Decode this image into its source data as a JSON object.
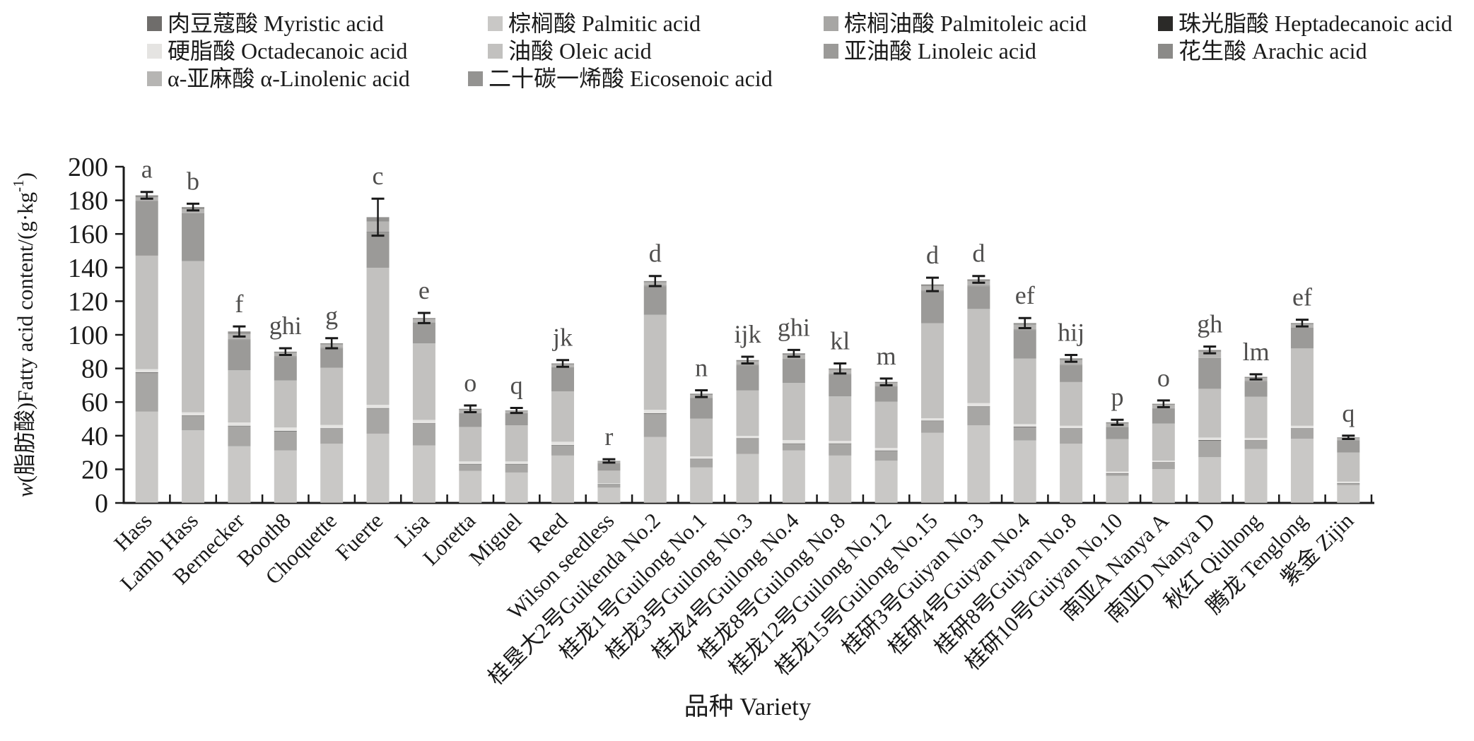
{
  "chart_data": {
    "type": "stacked-bar",
    "title": "",
    "xlabel": "品种 Variety",
    "ylabel_text": "w(脂肪酸)Fatty acid content/(g·kg⁻¹)",
    "ylabel": {
      "italic": "w",
      "main": "(脂肪酸)Fatty acid content/(g·kg",
      "sup": "-1",
      "end": ")"
    },
    "ylim": [
      0,
      200
    ],
    "ytick_step": 20,
    "ytick_labels": [
      "0",
      "20",
      "40",
      "60",
      "80",
      "100",
      "120",
      "140",
      "160",
      "180",
      "200"
    ],
    "grid": false,
    "legend_position": "top",
    "error_bar_color": "#1a1a1a",
    "sig_letter_color": "#4f4e4d",
    "axis_color": "#1a1a1a",
    "categories": [
      "Hass",
      "Lamb Hass",
      "Bernecker",
      "Booth8",
      "Choquette",
      "Fuerte",
      "Lisa",
      "Loretta",
      "Miguel",
      "Reed",
      "Wilson seedless",
      "桂垦大2号Guikenda No.2",
      "桂龙1号Guilong No.1",
      "桂龙3号Guilong No.3",
      "桂龙4号Guilong No.4",
      "桂龙8号Guilong No.8",
      "桂龙12号Guilong No.12",
      "桂龙15号Guilong No.15",
      "桂研3号Guiyan No.3",
      "桂研4号Guiyan No.4",
      "桂研8号Guiyan No.8",
      "桂研10号Guiyan No.10",
      "南亚A Nanya A",
      "南亚D Nanya D",
      "秋红 Qiuhong",
      "腾龙 Tenglong",
      "紫金 Zijin"
    ],
    "sig_letters": [
      "a",
      "b",
      "f",
      "ghi",
      "g",
      "c",
      "e",
      "o",
      "q",
      "jk",
      "r",
      "d",
      "n",
      "ijk",
      "ghi",
      "kl",
      "m",
      "d",
      "d",
      "ef",
      "hij",
      "p",
      "o",
      "gh",
      "lm",
      "ef",
      "q"
    ],
    "totals": [
      183,
      176,
      102,
      90,
      95,
      170,
      110,
      56,
      55,
      83,
      25,
      132,
      65,
      85,
      89,
      80,
      72,
      130,
      133,
      107,
      86,
      48,
      59,
      91,
      75,
      107,
      39
    ],
    "errors": [
      2,
      2,
      3,
      2,
      3,
      11,
      3,
      2,
      1.5,
      2,
      1,
      3,
      2,
      2,
      2,
      3,
      2,
      4,
      2,
      3,
      2,
      1.5,
      2,
      2,
      1.5,
      2,
      1
    ],
    "series": [
      {
        "name": "肉豆蔻酸 Myristic acid",
        "color": "#6f6d6b",
        "values": [
          0.3,
          0.2,
          0.2,
          0.2,
          0.2,
          0.2,
          0.2,
          0.1,
          0.1,
          0.2,
          0.1,
          0.2,
          0.1,
          0.2,
          0.2,
          0.2,
          0.1,
          0.2,
          0.2,
          0.2,
          0.2,
          0.1,
          0.1,
          0.2,
          0.1,
          0.2,
          0.1
        ]
      },
      {
        "name": "棕榈酸 Palmitic acid",
        "color": "#c9c8c6",
        "values": [
          54,
          43,
          33.5,
          31,
          35,
          41,
          34,
          19,
          18,
          28,
          9,
          39,
          21,
          29,
          31,
          28,
          25,
          41.5,
          46,
          37,
          35,
          16,
          20,
          27,
          32,
          38,
          10.5
        ]
      },
      {
        "name": "棕榈油酸 Palmitoleic acid",
        "color": "#a7a6a4",
        "values": [
          23,
          8.5,
          12,
          11.5,
          9,
          15,
          13,
          4,
          5,
          6,
          2,
          14,
          5,
          9,
          4,
          7,
          6,
          7,
          11,
          8,
          9,
          1.5,
          4,
          10,
          5,
          6,
          1
        ]
      },
      {
        "name": "珠光脂酸 Heptadecanoic acid",
        "color": "#2b2a28",
        "values": [
          0.3,
          0.2,
          0.2,
          0.2,
          0.2,
          0.2,
          0.2,
          0.1,
          0.1,
          0.2,
          0.1,
          0.2,
          0.1,
          0.2,
          0.2,
          0.2,
          0.1,
          0.2,
          0.2,
          0.2,
          0.2,
          0.1,
          0.1,
          0.2,
          0.1,
          0.2,
          0.1
        ]
      },
      {
        "name": "硬脂酸 Octadecanoic acid",
        "color": "#e5e4e2",
        "values": [
          2,
          2,
          2,
          2,
          2,
          2,
          2,
          1.5,
          1.5,
          2,
          0.5,
          2,
          1.5,
          1.5,
          2,
          1.5,
          1.5,
          1.5,
          2,
          1.5,
          1.5,
          1,
          1,
          1.5,
          1.5,
          1.5,
          1
        ]
      },
      {
        "name": "油酸 Oleic acid",
        "color": "#c2c1bf",
        "values": [
          67.5,
          90,
          31,
          28,
          34,
          81.5,
          45.5,
          20.5,
          21.5,
          30,
          7.5,
          56.5,
          22.5,
          27,
          34,
          26.5,
          27.5,
          56.5,
          56,
          39,
          26,
          19.3,
          22,
          29,
          24.5,
          46,
          17.3
        ]
      },
      {
        "name": "亚油酸 Linoleic acid",
        "color": "#9b9a98",
        "values": [
          32,
          28,
          18,
          14,
          11.5,
          21,
          12,
          8,
          7,
          14,
          4.3,
          17,
          12,
          15,
          14,
          13,
          9,
          19,
          13.5,
          17,
          10,
          7,
          9,
          18,
          9,
          12,
          7
        ]
      },
      {
        "name": "花生酸 Arachic acid",
        "color": "#8b8a88",
        "values": [
          0.5,
          0.4,
          0.4,
          0.4,
          0.4,
          0.5,
          0.4,
          0.3,
          0.3,
          0.3,
          0.2,
          0.4,
          0.3,
          0.3,
          0.3,
          0.3,
          0.3,
          0.4,
          0.4,
          0.3,
          0.3,
          0.2,
          0.2,
          0.3,
          0.3,
          0.3,
          0.2
        ]
      },
      {
        "name": "α-亚麻酸 α-Linolenic acid",
        "color": "#b6b5b3",
        "values": [
          2.2,
          2.5,
          3.2,
          1.9,
          2,
          6,
          2,
          1.8,
          1,
          1.6,
          0.8,
          2,
          1.8,
          2,
          2.4,
          2.4,
          1.8,
          2.7,
          2.7,
          2.9,
          2.9,
          2.1,
          1.9,
          3.8,
          1.8,
          2,
          1.3
        ]
      },
      {
        "name": "二十碳一烯酸 Eicosenoic acid",
        "color": "#949391",
        "values": [
          1.2,
          1.2,
          1.5,
          0.8,
          0.7,
          2.6,
          0.7,
          0.7,
          0.5,
          0.7,
          0.5,
          0.7,
          0.7,
          0.8,
          0.9,
          0.9,
          0.7,
          1,
          1,
          0.9,
          0.9,
          0.7,
          0.7,
          1,
          0.7,
          0.8,
          0.5
        ]
      }
    ]
  }
}
